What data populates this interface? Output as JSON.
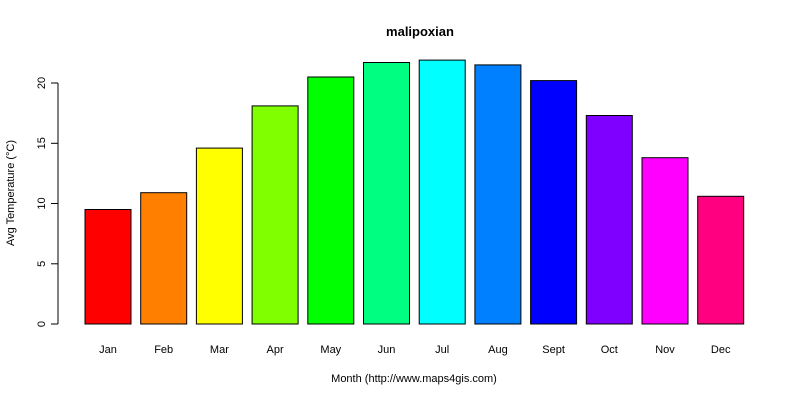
{
  "chart_data": {
    "type": "bar",
    "title": "malipoxian",
    "xlabel": "Month (http://www.maps4gis.com)",
    "ylabel": "Avg Temperature (°C)",
    "categories": [
      "Jan",
      "Feb",
      "Mar",
      "Apr",
      "May",
      "Jun",
      "Jul",
      "Aug",
      "Sept",
      "Oct",
      "Nov",
      "Dec"
    ],
    "values": [
      9.5,
      10.9,
      14.6,
      18.1,
      20.5,
      21.7,
      21.9,
      21.5,
      20.2,
      17.3,
      13.8,
      10.6
    ],
    "colors": [
      "#FF0000",
      "#FF8000",
      "#FFFF00",
      "#80FF00",
      "#00FF00",
      "#00FF80",
      "#00FFFF",
      "#0080FF",
      "#0000FF",
      "#8000FF",
      "#FF00FF",
      "#FF0080"
    ],
    "ylim": [
      0,
      22
    ],
    "yticks": [
      0,
      5,
      10,
      15,
      20
    ],
    "grid": false,
    "legend": "none"
  }
}
